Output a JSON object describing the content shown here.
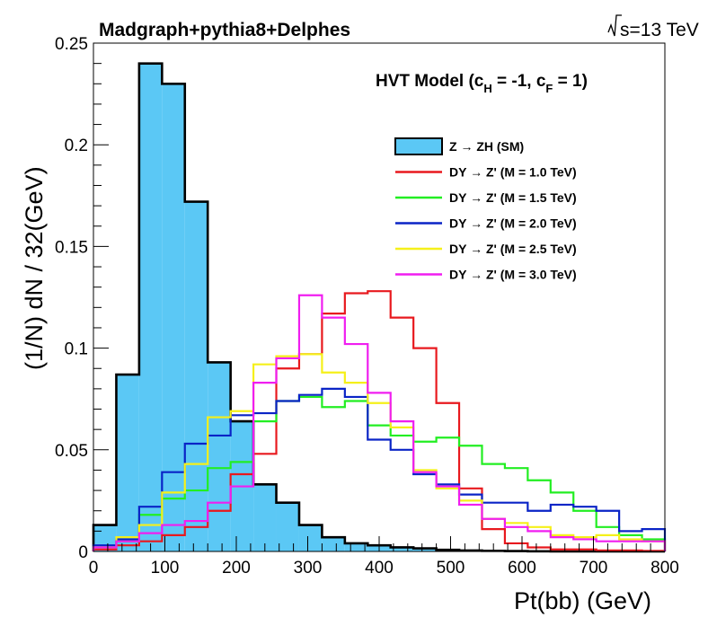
{
  "chart_data": {
    "type": "histogram",
    "title": "Madgraph+pythia8+Delphes",
    "energy_label": "s=13 TeV",
    "xlabel": "Pt(bb) (GeV)",
    "ylabel": "(1/N) dN / 32(GeV)",
    "xlim": [
      0,
      800
    ],
    "ylim": [
      0,
      0.25
    ],
    "bin_width": 32,
    "model_label": {
      "prefix": "HVT Model (c",
      "sub1": "H",
      "mid": " = -1, c",
      "sub2": "F",
      "suffix": " = 1)"
    },
    "x_ticks": [
      0,
      100,
      200,
      300,
      400,
      500,
      600,
      700,
      800
    ],
    "x_tick_labels": [
      "0",
      "100",
      "200",
      "300",
      "400",
      "500",
      "600",
      "700",
      "800"
    ],
    "y_ticks": [
      0,
      0.05,
      0.1,
      0.15,
      0.2,
      0.25
    ],
    "y_tick_labels": [
      "0",
      "0.05",
      "0.1",
      "0.15",
      "0.2",
      "0.25"
    ],
    "series": [
      {
        "name": "Z  → ZH (SM)",
        "color": "#5bc8f5",
        "edge": "#000000",
        "filled": true,
        "values": [
          0.013,
          0.087,
          0.24,
          0.23,
          0.172,
          0.093,
          0.064,
          0.033,
          0.024,
          0.013,
          0.007,
          0.004,
          0.003,
          0.002,
          0.0015,
          0.0008,
          0.0005,
          0.0003,
          0.0002,
          0.0001,
          0.0,
          0.0,
          0.0,
          0.0,
          0.0
        ]
      },
      {
        "name": "DY  → Z' (M = 1.0 TeV)",
        "color": "#e8191e",
        "filled": false,
        "values": [
          0.001,
          0.003,
          0.005,
          0.008,
          0.012,
          0.02,
          0.038,
          0.048,
          0.09,
          0.097,
          0.117,
          0.127,
          0.128,
          0.115,
          0.1,
          0.073,
          0.031,
          0.011,
          0.004,
          0.002,
          0.001,
          0.001,
          0.0005,
          0.0005,
          0.0003
        ]
      },
      {
        "name": "DY  → Z' (M = 1.5 TeV)",
        "color": "#22ee22",
        "filled": false,
        "values": [
          0.002,
          0.005,
          0.018,
          0.026,
          0.03,
          0.041,
          0.044,
          0.064,
          0.074,
          0.076,
          0.071,
          0.074,
          0.062,
          0.057,
          0.054,
          0.056,
          0.052,
          0.043,
          0.041,
          0.035,
          0.029,
          0.02,
          0.012,
          0.008,
          0.006
        ]
      },
      {
        "name": "DY  → Z' (M = 2.0 TeV)",
        "color": "#0a24c6",
        "filled": false,
        "values": [
          0.003,
          0.006,
          0.022,
          0.039,
          0.053,
          0.057,
          0.067,
          0.068,
          0.074,
          0.077,
          0.08,
          0.076,
          0.055,
          0.05,
          0.038,
          0.033,
          0.028,
          0.024,
          0.024,
          0.02,
          0.023,
          0.022,
          0.02,
          0.01,
          0.011
        ]
      },
      {
        "name": "DY  → Z' (M = 2.5 TeV)",
        "color": "#f5f01a",
        "filled": false,
        "values": [
          0.002,
          0.007,
          0.013,
          0.029,
          0.043,
          0.066,
          0.069,
          0.092,
          0.096,
          0.097,
          0.088,
          0.083,
          0.073,
          0.061,
          0.04,
          0.031,
          0.025,
          0.016,
          0.014,
          0.012,
          0.008,
          0.007,
          0.008,
          0.006,
          0.005
        ]
      },
      {
        "name": "DY  → Z' (M = 3.0 TeV)",
        "color": "#f01ef0",
        "filled": false,
        "values": [
          0.002,
          0.005,
          0.009,
          0.013,
          0.015,
          0.024,
          0.032,
          0.083,
          0.095,
          0.126,
          0.115,
          0.102,
          0.078,
          0.064,
          0.039,
          0.032,
          0.023,
          0.016,
          0.012,
          0.01,
          0.007,
          0.006,
          0.005,
          0.005,
          0.005
        ]
      }
    ]
  }
}
